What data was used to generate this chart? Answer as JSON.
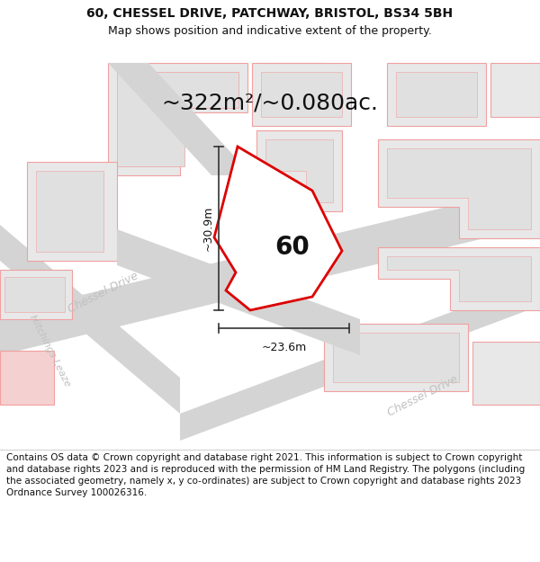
{
  "title_line1": "60, CHESSEL DRIVE, PATCHWAY, BRISTOL, BS34 5BH",
  "title_line2": "Map shows position and indicative extent of the property.",
  "area_text": "~322m²/~0.080ac.",
  "label_number": "60",
  "measure_height": "~30.9m",
  "measure_width": "~23.6m",
  "footer_text": "Contains OS data © Crown copyright and database right 2021. This information is subject to Crown copyright and database rights 2023 and is reproduced with the permission of HM Land Registry. The polygons (including the associated geometry, namely x, y co-ordinates) are subject to Crown copyright and database rights 2023 Ordnance Survey 100026316.",
  "bg_color": "#ffffff",
  "map_bg": "#ffffff",
  "building_fill": "#e8e8e8",
  "building_outline": "#f0a0a0",
  "road_fill": "#d8d8d8",
  "property_outline": "#dd0000",
  "property_fill": "#ffffff",
  "street_label_color": "#c0c0c0",
  "measure_color": "#333333",
  "title_fontsize": 10,
  "subtitle_fontsize": 9,
  "area_fontsize": 18,
  "label_fontsize": 20,
  "measure_fontsize": 9,
  "street_fontsize": 9,
  "footer_fontsize": 7.5
}
